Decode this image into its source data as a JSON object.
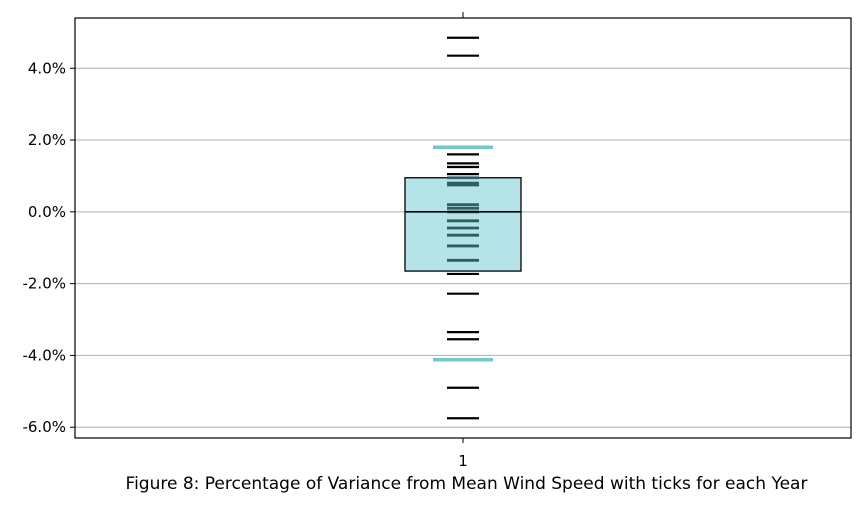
{
  "caption": "Figure 8: Percentage of Variance from Mean Wind Speed with ticks for each Year",
  "colors": {
    "box_fill": "#b5e3e7",
    "whisker": "#74c7d1",
    "median": "#000000",
    "tick_dark": "#000000",
    "tick_inside": "#2f5f60",
    "grid": "#b0b0b0"
  },
  "chart_data": {
    "type": "box",
    "title": "",
    "xlabel": "",
    "ylabel": "",
    "x_categories": [
      "1"
    ],
    "ylim": [
      -6.3,
      5.4
    ],
    "y_ticks": [
      -6,
      -4,
      -2,
      0,
      2,
      4
    ],
    "y_tick_labels": [
      "-6.0%",
      "-4.0%",
      "-2.0%",
      "0.0%",
      "2.0%",
      "4.0%"
    ],
    "grid": "horizontal",
    "box": {
      "q1": -1.65,
      "median": 0.0,
      "q3": 0.95,
      "whisker_low": -4.12,
      "whisker_high": 1.8
    },
    "yearly_ticks": [
      4.85,
      4.35,
      1.6,
      1.35,
      1.25,
      1.05,
      0.95,
      0.8,
      0.75,
      0.2,
      0.1,
      0.0,
      -0.25,
      -0.45,
      -0.65,
      -0.95,
      -1.35,
      -1.73,
      -2.28,
      -3.35,
      -3.55,
      -4.9,
      -5.75
    ]
  }
}
